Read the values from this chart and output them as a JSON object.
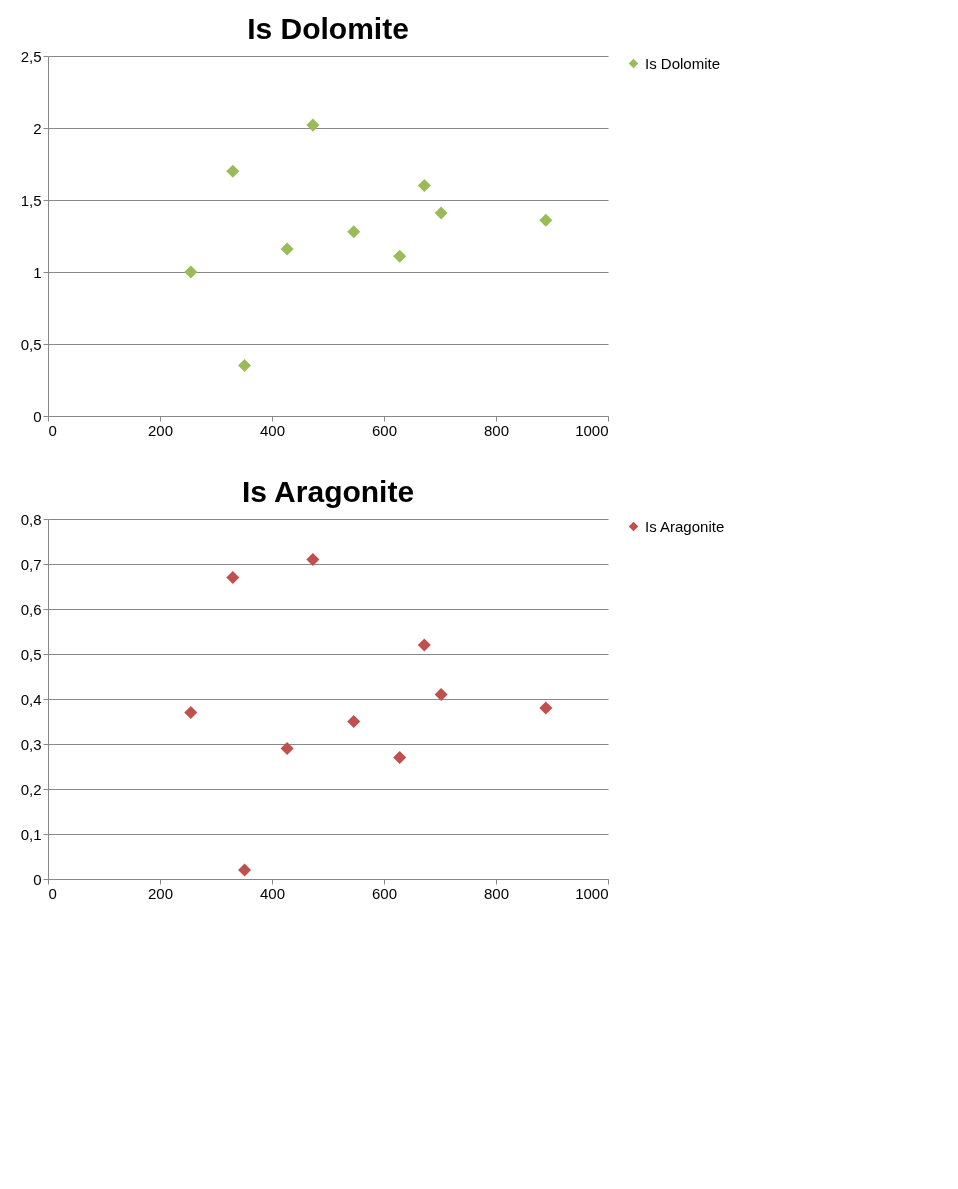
{
  "chart_data": [
    {
      "type": "scatter",
      "title": "Is Dolomite",
      "x": [
        255,
        330,
        351,
        427,
        473,
        546,
        628,
        672,
        702,
        889
      ],
      "series": [
        {
          "name": "Is Dolomite",
          "color": "#9bbb59",
          "values": [
            1.0,
            1.7,
            0.35,
            1.16,
            2.02,
            1.28,
            1.11,
            1.6,
            1.41,
            1.36
          ]
        }
      ],
      "xlim": [
        0,
        1000
      ],
      "xticks": [
        0,
        200,
        400,
        600,
        800,
        1000
      ],
      "ylim": [
        0,
        2.5
      ],
      "yticks": [
        0,
        {
          "value": 0.5,
          "label": "0,5"
        },
        1,
        {
          "value": 1.5,
          "label": "1,5"
        },
        2,
        {
          "value": 2.5,
          "label": "2,5"
        }
      ],
      "grid": "y",
      "legend": "right",
      "marker": "diamond"
    },
    {
      "type": "scatter",
      "title": "Is Aragonite",
      "x": [
        255,
        330,
        351,
        427,
        473,
        546,
        628,
        672,
        702,
        889
      ],
      "series": [
        {
          "name": "Is Aragonite",
          "color": "#c0504d",
          "values": [
            0.37,
            0.67,
            0.02,
            0.29,
            0.71,
            0.35,
            0.27,
            0.52,
            0.41,
            0.38
          ]
        }
      ],
      "xlim": [
        0,
        1000
      ],
      "xticks": [
        0,
        200,
        400,
        600,
        800,
        1000
      ],
      "ylim": [
        0,
        0.8
      ],
      "yticks": [
        0,
        {
          "value": 0.1,
          "label": "0,1"
        },
        {
          "value": 0.2,
          "label": "0,2"
        },
        {
          "value": 0.3,
          "label": "0,3"
        },
        {
          "value": 0.4,
          "label": "0,4"
        },
        {
          "value": 0.5,
          "label": "0,5"
        },
        {
          "value": 0.6,
          "label": "0,6"
        },
        {
          "value": 0.7,
          "label": "0,7"
        },
        {
          "value": 0.8,
          "label": "0,8"
        }
      ],
      "grid": "y",
      "legend": "right",
      "marker": "diamond"
    }
  ]
}
